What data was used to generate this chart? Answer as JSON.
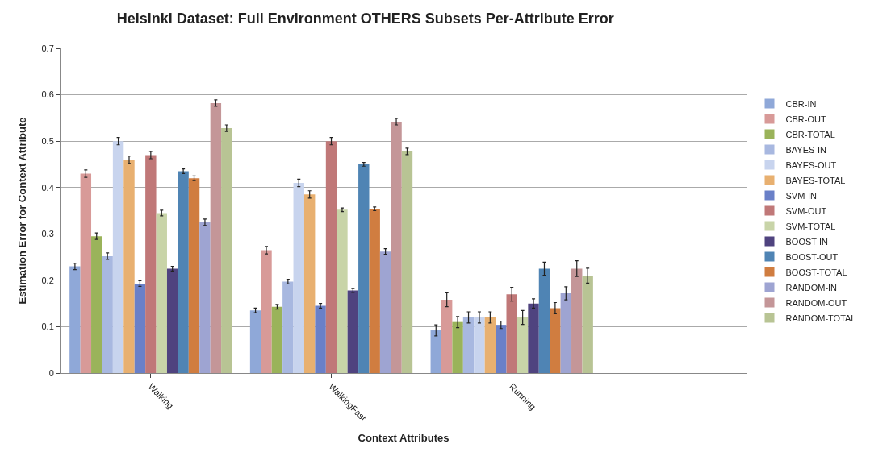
{
  "chart_data": {
    "type": "bar",
    "title": "Helsinki Dataset: Full Environment OTHERS Subsets Per-Attribute Error",
    "xlabel": "Context Attributes",
    "ylabel": "Estimation Error for Context Attribute",
    "categories": [
      "Walking",
      "WalkingFast",
      "Running"
    ],
    "ylim": [
      0,
      0.7
    ],
    "yticks": [
      0,
      0.1,
      0.2,
      0.3,
      0.4,
      0.5,
      0.6,
      0.7
    ],
    "grid": "y",
    "legend": "right",
    "series": [
      {
        "name": "CBR-IN",
        "color": "#8fa8d8",
        "values": [
          0.23,
          0.135,
          0.092
        ],
        "errors": [
          0.007,
          0.005,
          0.012
        ]
      },
      {
        "name": "CBR-OUT",
        "color": "#d89a98",
        "values": [
          0.43,
          0.265,
          0.158
        ],
        "errors": [
          0.008,
          0.008,
          0.015
        ]
      },
      {
        "name": "CBR-TOTAL",
        "color": "#9ab35a",
        "values": [
          0.295,
          0.143,
          0.11
        ],
        "errors": [
          0.007,
          0.005,
          0.012
        ]
      },
      {
        "name": "BAYES-IN",
        "color": "#a8b8e0",
        "values": [
          0.252,
          0.197,
          0.12
        ],
        "errors": [
          0.007,
          0.005,
          0.012
        ]
      },
      {
        "name": "BAYES-OUT",
        "color": "#c8d4ee",
        "values": [
          0.5,
          0.41,
          0.12
        ],
        "errors": [
          0.008,
          0.008,
          0.012
        ]
      },
      {
        "name": "BAYES-TOTAL",
        "color": "#e8b070",
        "values": [
          0.46,
          0.385,
          0.12
        ],
        "errors": [
          0.008,
          0.008,
          0.012
        ]
      },
      {
        "name": "SVM-IN",
        "color": "#6a80c8",
        "values": [
          0.193,
          0.145,
          0.104
        ],
        "errors": [
          0.006,
          0.005,
          0.008
        ]
      },
      {
        "name": "SVM-OUT",
        "color": "#c07878",
        "values": [
          0.47,
          0.5,
          0.17
        ],
        "errors": [
          0.008,
          0.008,
          0.015
        ]
      },
      {
        "name": "SVM-TOTAL",
        "color": "#c8d4a8",
        "values": [
          0.345,
          0.352,
          0.12
        ],
        "errors": [
          0.006,
          0.004,
          0.015
        ]
      },
      {
        "name": "BOOST-IN",
        "color": "#4f437f",
        "values": [
          0.225,
          0.178,
          0.15
        ],
        "errors": [
          0.005,
          0.004,
          0.01
        ]
      },
      {
        "name": "BOOST-OUT",
        "color": "#4f84b4",
        "values": [
          0.435,
          0.45,
          0.225
        ],
        "errors": [
          0.005,
          0.004,
          0.014
        ]
      },
      {
        "name": "BOOST-TOTAL",
        "color": "#d07d40",
        "values": [
          0.42,
          0.354,
          0.14
        ],
        "errors": [
          0.005,
          0.004,
          0.012
        ]
      },
      {
        "name": "RANDOM-IN",
        "color": "#9ea4d2",
        "values": [
          0.325,
          0.262,
          0.172
        ],
        "errors": [
          0.007,
          0.006,
          0.014
        ]
      },
      {
        "name": "RANDOM-OUT",
        "color": "#c49698",
        "values": [
          0.582,
          0.542,
          0.225
        ],
        "errors": [
          0.007,
          0.007,
          0.017
        ]
      },
      {
        "name": "RANDOM-TOTAL",
        "color": "#b8c494",
        "values": [
          0.528,
          0.478,
          0.21
        ],
        "errors": [
          0.007,
          0.007,
          0.016
        ]
      }
    ]
  }
}
